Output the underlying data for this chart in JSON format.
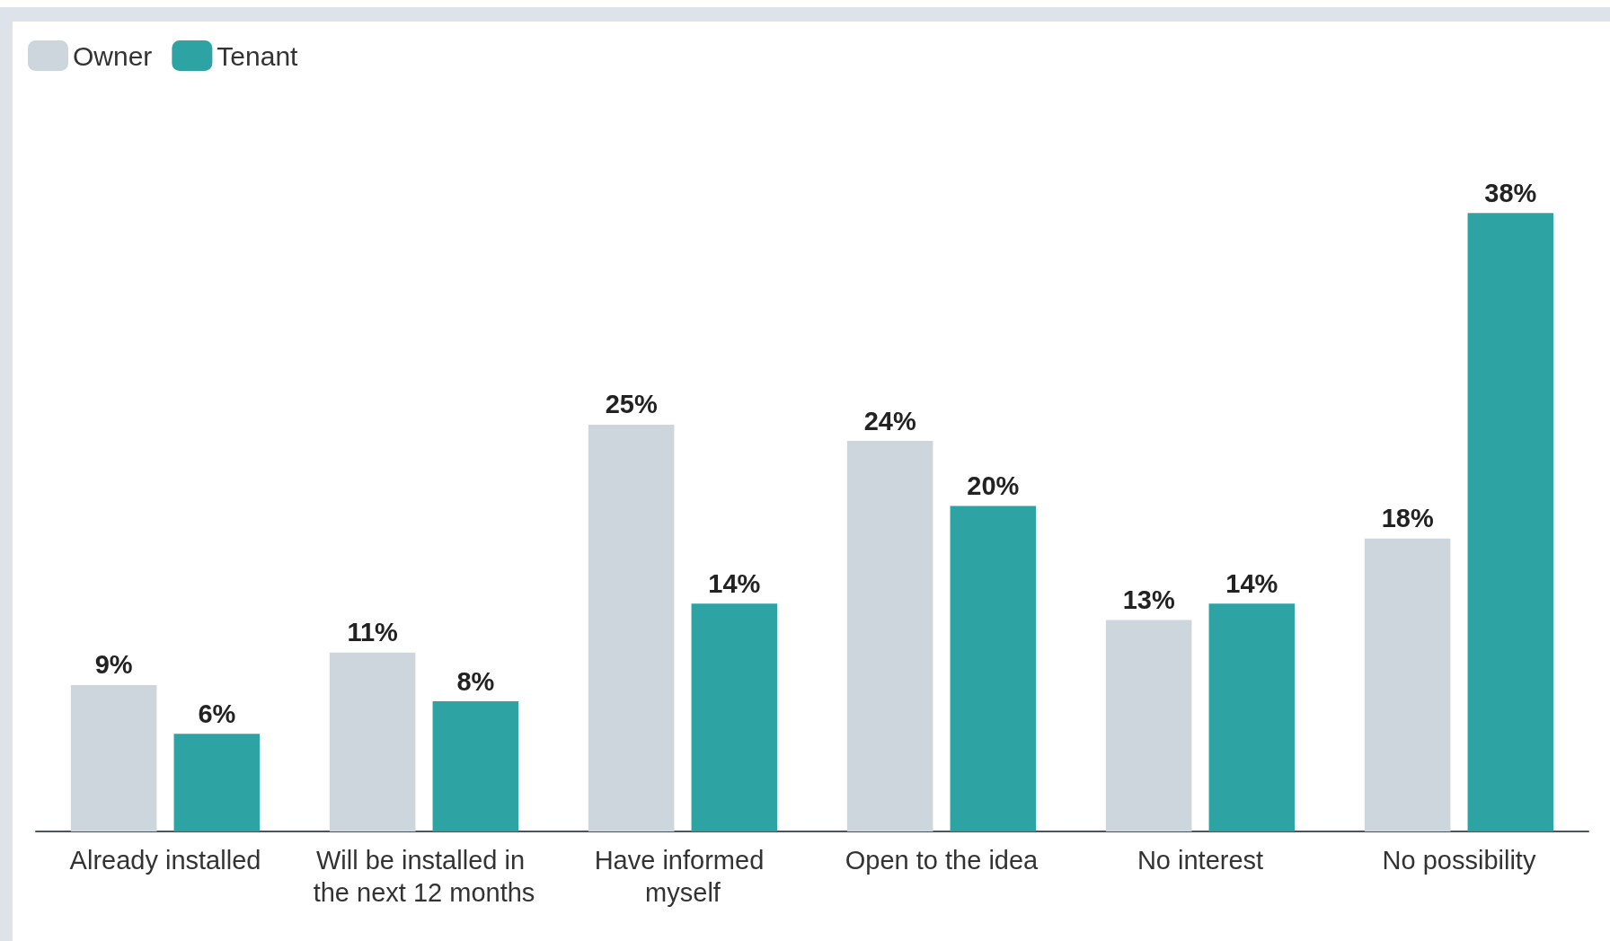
{
  "chart_data": {
    "type": "bar",
    "categories": [
      "Already installed",
      "Will be installed in the next 12 months",
      "Have informed myself",
      "Open to the idea",
      "No interest",
      "No possibility"
    ],
    "series": [
      {
        "name": "Owner",
        "color": "#ced6dd",
        "values": [
          9,
          11,
          25,
          24,
          13,
          18
        ],
        "value_labels": [
          "9%",
          "11%",
          "25%",
          "24%",
          "13%",
          "18%"
        ]
      },
      {
        "name": "Tenant",
        "color": "#2ea3a3",
        "values": [
          6,
          8,
          14,
          20,
          14,
          38
        ],
        "value_labels": [
          "6%",
          "8%",
          "14%",
          "20%",
          "14%",
          "38%"
        ]
      }
    ],
    "legend": "top left",
    "grid": false,
    "tick_labels": "x"
  }
}
